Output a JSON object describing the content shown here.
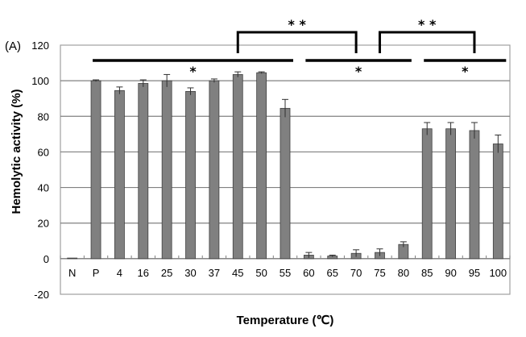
{
  "chart_data": {
    "type": "bar",
    "panel_label": "(A)",
    "title": "",
    "xlabel": "Temperature (℃)",
    "ylabel": "Hemolytic activity (%)",
    "ylim": [
      -20,
      120
    ],
    "yticks": [
      -20,
      0,
      20,
      40,
      60,
      80,
      100,
      120
    ],
    "grid": true,
    "legend": null,
    "bar_color": "#808080",
    "categories": [
      "N",
      "P",
      "4",
      "16",
      "25",
      "30",
      "37",
      "45",
      "50",
      "55",
      "60",
      "65",
      "70",
      "75",
      "80",
      "85",
      "90",
      "95",
      "100"
    ],
    "values": [
      0,
      100,
      94.5,
      98.5,
      100,
      94,
      100,
      103.5,
      104.5,
      84.5,
      2,
      1.5,
      3,
      3.5,
      8,
      73,
      73,
      72,
      64.5
    ],
    "errors": [
      0,
      0.5,
      2,
      2,
      3.5,
      2,
      1,
      1.5,
      0.5,
      5,
      1.5,
      0.5,
      2,
      2,
      1.5,
      3.5,
      3.5,
      4.5,
      5
    ],
    "significance": {
      "single": [
        {
          "from": "P",
          "to": "55",
          "label": "*"
        },
        {
          "from": "60",
          "to": "80",
          "label": "*"
        },
        {
          "from": "85",
          "to": "100",
          "label": "*"
        }
      ],
      "double": [
        {
          "from": "45",
          "to": "70",
          "label": "**"
        },
        {
          "from": "75",
          "to": "95",
          "label": "**"
        }
      ]
    }
  }
}
